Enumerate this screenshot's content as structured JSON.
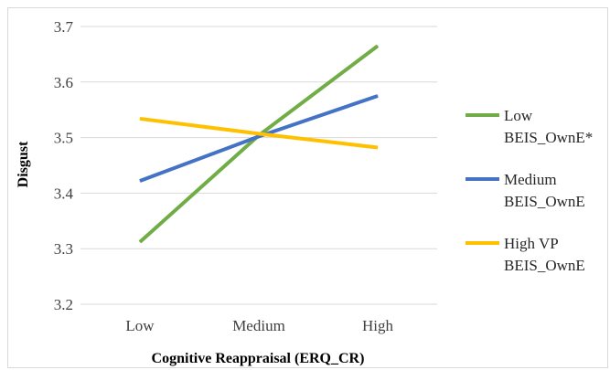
{
  "chart_data": {
    "type": "line",
    "title": "",
    "xlabel": "Cognitive Reappraisal (ERQ_CR)",
    "ylabel": "Disgust",
    "categories": [
      "Low",
      "Medium",
      "High"
    ],
    "ylim": [
      3.2,
      3.7
    ],
    "yticks": [
      "3.2",
      "3.3",
      "3.4",
      "3.5",
      "3.6",
      "3.7"
    ],
    "grid": true,
    "legend_position": "right",
    "series": [
      {
        "name": "Low BEIS_OwnE*",
        "legend_lines": [
          "Low",
          "BEIS_OwnE*"
        ],
        "color": "#70ad47",
        "values": [
          3.312,
          3.504,
          3.665
        ]
      },
      {
        "name": "Medium BEIS_OwnE",
        "legend_lines": [
          "Medium",
          "BEIS_OwnE"
        ],
        "color": "#4472c4",
        "values": [
          3.422,
          3.502,
          3.575
        ]
      },
      {
        "name": "High VP BEIS_OwnE",
        "legend_lines": [
          "High VP",
          "BEIS_OwnE"
        ],
        "color": "#ffc000",
        "values": [
          3.534,
          3.507,
          3.482
        ]
      }
    ]
  }
}
